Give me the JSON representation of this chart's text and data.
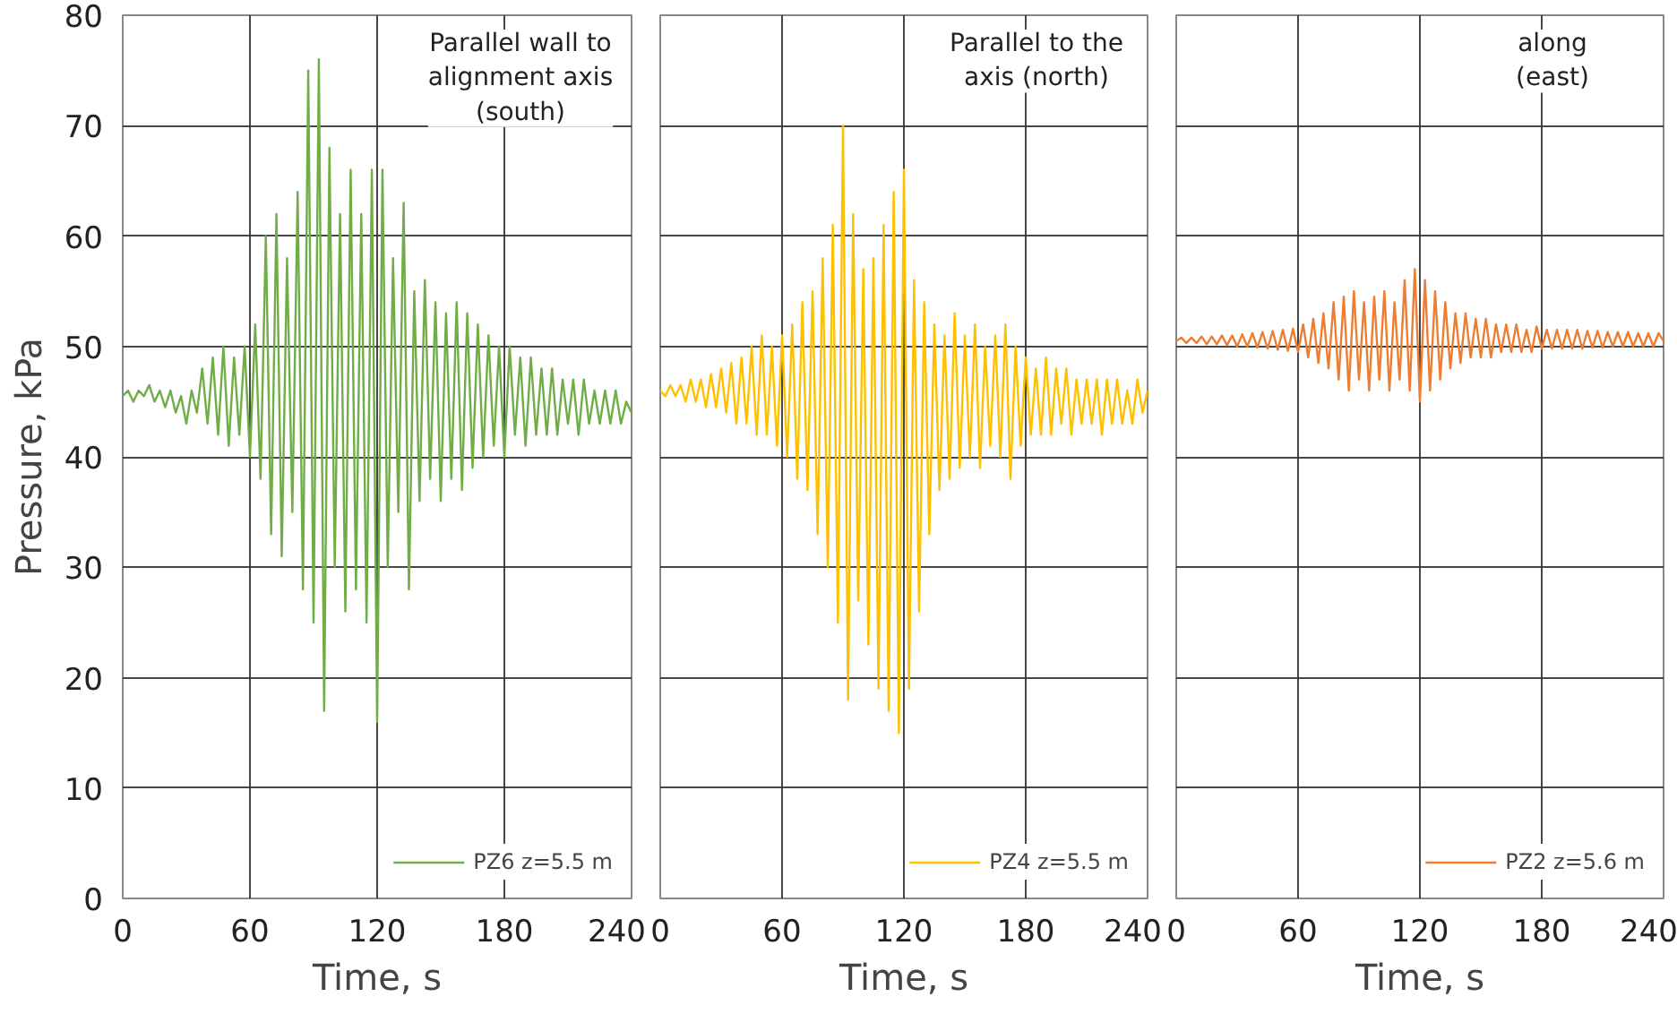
{
  "chart_data": [
    {
      "type": "line",
      "ylabel": "Pressure, kPa",
      "xlabel": "Time, s",
      "annotations": [
        "Parallel wall to\nalignment axis\n(south)"
      ],
      "xlim": [
        0,
        240
      ],
      "xticks": [
        0,
        60,
        120,
        180,
        240
      ],
      "ylim": [
        0,
        80
      ],
      "yticks": [
        0,
        10,
        20,
        30,
        40,
        50,
        60,
        70,
        80
      ],
      "grid": true,
      "legend": "bottom right",
      "x": [
        0,
        2.5,
        5,
        7.5,
        10,
        12.5,
        15,
        17.5,
        20,
        22.5,
        25,
        27.5,
        30,
        32.5,
        35,
        37.5,
        40,
        42.5,
        45,
        47.5,
        50,
        52.5,
        55,
        57.5,
        60,
        62.5,
        65,
        67.5,
        70,
        72.5,
        75,
        77.5,
        80,
        82.5,
        85,
        87.5,
        90,
        92.5,
        95,
        97.5,
        100,
        102.5,
        105,
        107.5,
        110,
        112.5,
        115,
        117.5,
        120,
        122.5,
        125,
        127.5,
        130,
        132.5,
        135,
        137.5,
        140,
        142.5,
        145,
        147.5,
        150,
        152.5,
        155,
        157.5,
        160,
        162.5,
        165,
        167.5,
        170,
        172.5,
        175,
        177.5,
        180,
        182.5,
        185,
        187.5,
        190,
        192.5,
        195,
        197.5,
        200,
        202.5,
        205,
        207.5,
        210,
        212.5,
        215,
        217.5,
        220,
        222.5,
        225,
        227.5,
        230,
        232.5,
        235,
        237.5,
        240
      ],
      "series": [
        {
          "name": "PZ6 z=5.5 m",
          "color": "#70ad47",
          "values": [
            45.5,
            46,
            45,
            46,
            45.5,
            46.5,
            45,
            46,
            44.5,
            46,
            44,
            45.5,
            43,
            46,
            44,
            48,
            43,
            49,
            42,
            50,
            41,
            49,
            42,
            50,
            40,
            52,
            38,
            60,
            33,
            62,
            31,
            58,
            35,
            64,
            28,
            75,
            25,
            76,
            17,
            68,
            30,
            62,
            26,
            66,
            28,
            62,
            25,
            66,
            16,
            66,
            30,
            58,
            35,
            63,
            28,
            55,
            36,
            56,
            38,
            54,
            36,
            53,
            38,
            54,
            37,
            53,
            39,
            52,
            40,
            51,
            41,
            50,
            40,
            50,
            42,
            49,
            41,
            49,
            42,
            48,
            42,
            48,
            42,
            47,
            43,
            47,
            42,
            47,
            43,
            46,
            43,
            46,
            43,
            46,
            43,
            45,
            44
          ]
        }
      ]
    },
    {
      "type": "line",
      "xlabel": "Time, s",
      "annotations": [
        "Parallel to the\naxis (north)"
      ],
      "xlim": [
        0,
        240
      ],
      "xticks": [
        0,
        60,
        120,
        180,
        240
      ],
      "ylim": [
        0,
        80
      ],
      "yticks": [
        0,
        10,
        20,
        30,
        40,
        50,
        60,
        70,
        80
      ],
      "grid": true,
      "legend": "bottom right",
      "tick_labels": "x",
      "x": [
        0,
        2.5,
        5,
        7.5,
        10,
        12.5,
        15,
        17.5,
        20,
        22.5,
        25,
        27.5,
        30,
        32.5,
        35,
        37.5,
        40,
        42.5,
        45,
        47.5,
        50,
        52.5,
        55,
        57.5,
        60,
        62.5,
        65,
        67.5,
        70,
        72.5,
        75,
        77.5,
        80,
        82.5,
        85,
        87.5,
        90,
        92.5,
        95,
        97.5,
        100,
        102.5,
        105,
        107.5,
        110,
        112.5,
        115,
        117.5,
        120,
        122.5,
        125,
        127.5,
        130,
        132.5,
        135,
        137.5,
        140,
        142.5,
        145,
        147.5,
        150,
        152.5,
        155,
        157.5,
        160,
        162.5,
        165,
        167.5,
        170,
        172.5,
        175,
        177.5,
        180,
        182.5,
        185,
        187.5,
        190,
        192.5,
        195,
        197.5,
        200,
        202.5,
        205,
        207.5,
        210,
        212.5,
        215,
        217.5,
        220,
        222.5,
        225,
        227.5,
        230,
        232.5,
        235,
        237.5,
        240
      ],
      "series": [
        {
          "name": "PZ4 z=5.5 m",
          "color": "#ffc000",
          "values": [
            46,
            45.5,
            46.5,
            45.5,
            46.5,
            45,
            47,
            45,
            47,
            44.5,
            47.5,
            44.5,
            48,
            44,
            48.5,
            43,
            49,
            43,
            50,
            42,
            51,
            42,
            50,
            41,
            51,
            40,
            52,
            38,
            54,
            37,
            55,
            33,
            58,
            30,
            61,
            25,
            70,
            18,
            62,
            27,
            57,
            23,
            58,
            19,
            61,
            17,
            64,
            15,
            66,
            19,
            56,
            26,
            54,
            33,
            52,
            37,
            51,
            38,
            53,
            39,
            51,
            40,
            52,
            39,
            50,
            41,
            51,
            40,
            52,
            38,
            50,
            41,
            49,
            42,
            48,
            42,
            49,
            42,
            48,
            43,
            48,
            42,
            47,
            43,
            47,
            43,
            47,
            42,
            47,
            43,
            47,
            43,
            46,
            43,
            47,
            44,
            46
          ]
        }
      ]
    },
    {
      "type": "line",
      "xlabel": "Time, s",
      "annotations": [
        "along\n(east)"
      ],
      "xlim": [
        0,
        240
      ],
      "xticks": [
        0,
        60,
        120,
        180,
        240
      ],
      "ylim": [
        0,
        80
      ],
      "yticks": [
        0,
        10,
        20,
        30,
        40,
        50,
        60,
        70,
        80
      ],
      "grid": true,
      "legend": "bottom right",
      "tick_labels": "x",
      "x": [
        0,
        2.5,
        5,
        7.5,
        10,
        12.5,
        15,
        17.5,
        20,
        22.5,
        25,
        27.5,
        30,
        32.5,
        35,
        37.5,
        40,
        42.5,
        45,
        47.5,
        50,
        52.5,
        55,
        57.5,
        60,
        62.5,
        65,
        67.5,
        70,
        72.5,
        75,
        77.5,
        80,
        82.5,
        85,
        87.5,
        90,
        92.5,
        95,
        97.5,
        100,
        102.5,
        105,
        107.5,
        110,
        112.5,
        115,
        117.5,
        120,
        122.5,
        125,
        127.5,
        130,
        132.5,
        135,
        137.5,
        140,
        142.5,
        145,
        147.5,
        150,
        152.5,
        155,
        157.5,
        160,
        162.5,
        165,
        167.5,
        170,
        172.5,
        175,
        177.5,
        180,
        182.5,
        185,
        187.5,
        190,
        192.5,
        195,
        197.5,
        200,
        202.5,
        205,
        207.5,
        210,
        212.5,
        215,
        217.5,
        220,
        222.5,
        225,
        227.5,
        230,
        232.5,
        235,
        237.5,
        240
      ],
      "series": [
        {
          "name": "PZ2 z=5.6 m",
          "color": "#ed7d31",
          "values": [
            50.5,
            50.8,
            50.3,
            50.8,
            50.3,
            50.9,
            50.2,
            50.9,
            50.2,
            51,
            50.1,
            51,
            50,
            51.1,
            50,
            51.2,
            49.9,
            51.3,
            49.8,
            51.4,
            49.7,
            51.5,
            49.6,
            51.6,
            49.5,
            52,
            49,
            52.5,
            48.5,
            53,
            48,
            54,
            47,
            54.5,
            46,
            55,
            47,
            54,
            46,
            54.5,
            47,
            55,
            46,
            54,
            47,
            56,
            46,
            57,
            45,
            56,
            46,
            55,
            47,
            54,
            48,
            53,
            48.5,
            53,
            49,
            52.5,
            49,
            52.5,
            49,
            52,
            49.5,
            52,
            49.5,
            52,
            49.5,
            51.5,
            49.5,
            51.8,
            49.8,
            51.5,
            49.8,
            51.5,
            49.8,
            51.5,
            49.8,
            51.5,
            49.8,
            51.4,
            49.9,
            51.4,
            49.9,
            51.3,
            50,
            51.3,
            50,
            51.3,
            50,
            51.2,
            50,
            51.2,
            50,
            51.2,
            50.5
          ]
        }
      ]
    }
  ]
}
